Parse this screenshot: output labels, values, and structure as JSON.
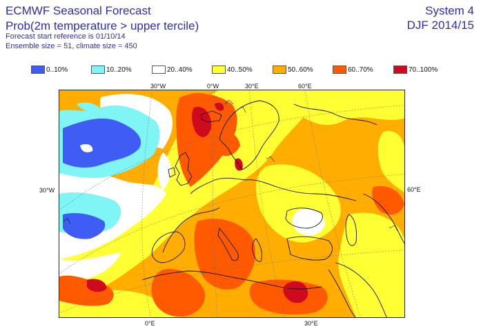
{
  "header": {
    "title": "ECMWF Seasonal Forecast",
    "subtitle": "Prob(2m temperature > upper tercile)",
    "start_ref": "Forecast start reference is 01/10/14",
    "ensemble": "Ensemble size = 51, climate size = 450",
    "system": "System 4",
    "season": "DJF 2014/15"
  },
  "legend": [
    {
      "label": "0..10%",
      "color": "#3f5df5"
    },
    {
      "label": "10..20%",
      "color": "#7ff5f5"
    },
    {
      "label": "20..40%",
      "color": "#ffffff"
    },
    {
      "label": "40..50%",
      "color": "#ffff33"
    },
    {
      "label": "50..60%",
      "color": "#ffad00"
    },
    {
      "label": "60..70%",
      "color": "#ff5a00"
    },
    {
      "label": "70..100%",
      "color": "#d00a1e"
    }
  ],
  "graticule_labels": {
    "top": [
      "30°W",
      "0°W",
      "30°E",
      "60°E"
    ],
    "left": "30°W",
    "right": "60°E",
    "bottom": [
      "0°E",
      "30°E"
    ]
  }
}
